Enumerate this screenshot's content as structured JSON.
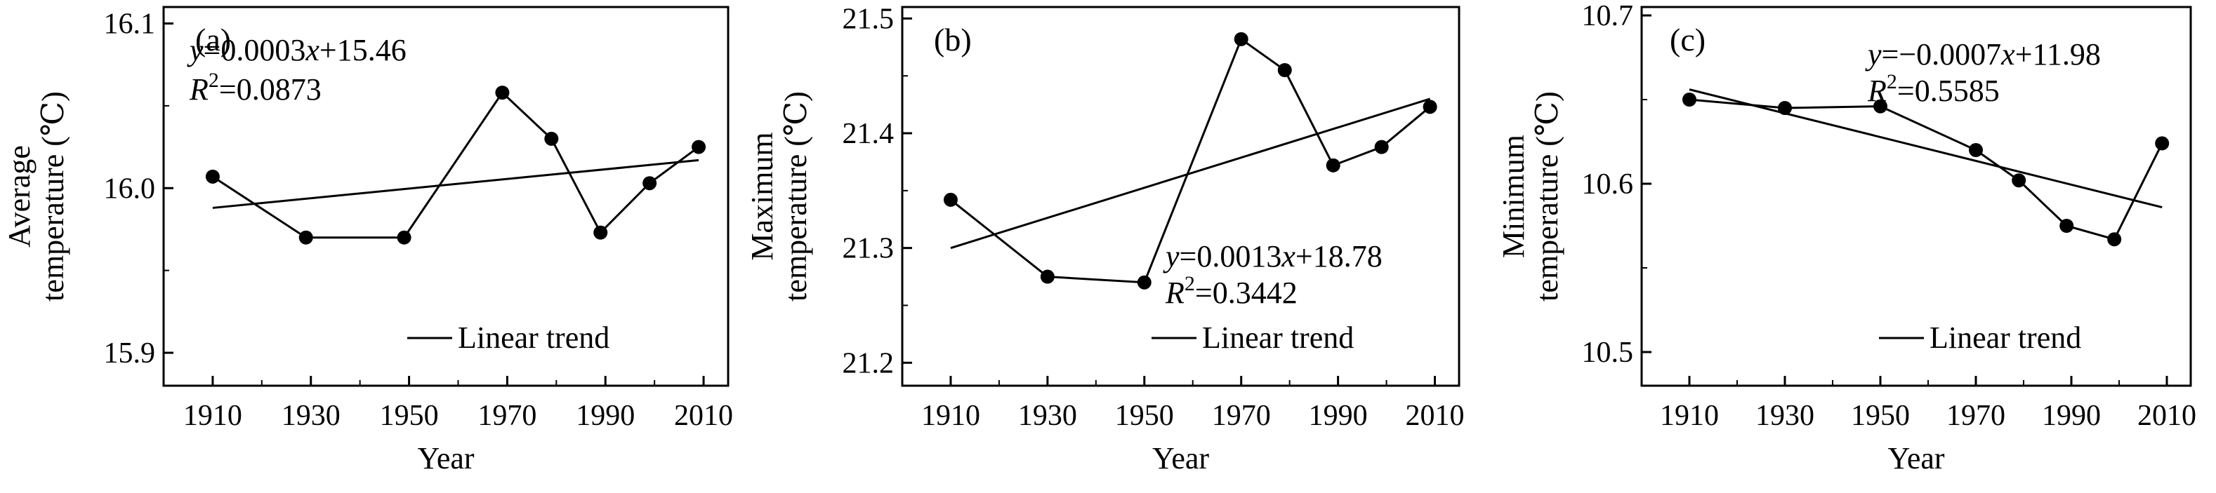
{
  "chart_data": [
    {
      "type": "line",
      "panel_label": "(a)",
      "ylabel_lines": [
        "Average",
        "temperature (℃)"
      ],
      "xlabel": "Year",
      "xlim": [
        1900,
        2015
      ],
      "ylim": [
        15.88,
        16.11
      ],
      "x_ticks": [
        1910,
        1930,
        1950,
        1970,
        1990,
        2010
      ],
      "y_ticks": [
        15.9,
        16.0,
        16.1
      ],
      "y_tick_labels": [
        "15.9",
        "16.0",
        "16.1"
      ],
      "x": [
        1910,
        1929,
        1949,
        1969,
        1979,
        1989,
        1999,
        2009
      ],
      "values": [
        16.007,
        15.97,
        15.97,
        16.058,
        16.03,
        15.973,
        16.003,
        16.025
      ],
      "trend": {
        "x": [
          1910,
          2009
        ],
        "y": [
          15.988,
          16.017
        ]
      },
      "equation_parts": [
        "y",
        "=0.0003",
        "x",
        "+15.46"
      ],
      "r2_parts": [
        "R",
        "2",
        "=0.0873"
      ],
      "legend": {
        "label": "Linear trend",
        "position": "bottom-right"
      }
    },
    {
      "type": "line",
      "panel_label": "(b)",
      "ylabel_lines": [
        "Maximum",
        "temperature (℃)"
      ],
      "xlabel": "Year",
      "xlim": [
        1900,
        2015
      ],
      "ylim": [
        21.18,
        21.51
      ],
      "x_ticks": [
        1910,
        1930,
        1950,
        1970,
        1990,
        2010
      ],
      "y_ticks": [
        21.2,
        21.3,
        21.4,
        21.5
      ],
      "y_tick_labels": [
        "21.2",
        "21.3",
        "21.4",
        "21.5"
      ],
      "x": [
        1910,
        1930,
        1950,
        1970,
        1979,
        1989,
        1999,
        2009
      ],
      "values": [
        21.342,
        21.275,
        21.27,
        21.482,
        21.455,
        21.372,
        21.388,
        21.423
      ],
      "trend": {
        "x": [
          1910,
          2009
        ],
        "y": [
          21.3,
          21.43
        ]
      },
      "equation_parts": [
        "y",
        "=0.0013",
        "x",
        "+18.78"
      ],
      "r2_parts": [
        "R",
        "2",
        "=0.3442"
      ],
      "legend": {
        "label": "Linear trend",
        "position": "bottom-right"
      }
    },
    {
      "type": "line",
      "panel_label": "(c)",
      "ylabel_lines": [
        "Minimum",
        "temperature (℃)"
      ],
      "xlabel": "Year",
      "xlim": [
        1900,
        2015
      ],
      "ylim": [
        10.48,
        10.705
      ],
      "x_ticks": [
        1910,
        1930,
        1950,
        1970,
        1990,
        2010
      ],
      "y_ticks": [
        10.5,
        10.6,
        10.7
      ],
      "y_tick_labels": [
        "10.5",
        "10.6",
        "10.7"
      ],
      "x": [
        1910,
        1930,
        1950,
        1970,
        1979,
        1989,
        1999,
        2009
      ],
      "values": [
        10.65,
        10.645,
        10.646,
        10.62,
        10.602,
        10.575,
        10.567,
        10.624
      ],
      "trend": {
        "x": [
          1910,
          2009
        ],
        "y": [
          10.656,
          10.586
        ]
      },
      "equation_parts": [
        "y",
        "=−0.0007",
        "x",
        "+11.98"
      ],
      "r2_parts": [
        "R",
        "2",
        "=0.5585"
      ],
      "legend": {
        "label": "Linear trend",
        "position": "bottom-right"
      }
    }
  ]
}
